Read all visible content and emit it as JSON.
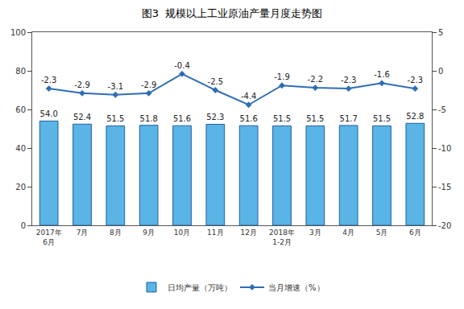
{
  "chart_data": {
    "type": "bar",
    "title": "图3  规模以上工业原油产量月度走势图",
    "categories": [
      "2017年6月",
      "7月",
      "8月",
      "9月",
      "10月",
      "11月",
      "12月",
      "2018年1-2月",
      "3月",
      "4月",
      "5月",
      "6月"
    ],
    "series": [
      {
        "name": "日均产量（万吨）",
        "type": "bar",
        "color": "#5ab4e6",
        "values": [
          54.0,
          52.4,
          51.5,
          51.8,
          51.6,
          52.3,
          51.6,
          51.5,
          51.5,
          51.7,
          51.5,
          52.8
        ],
        "value_labels": [
          "54.0",
          "52.4",
          "51.5",
          "51.8",
          "51.6",
          "52.3",
          "51.6",
          "51.5",
          "51.5",
          "51.7",
          "51.5",
          "52.8"
        ]
      },
      {
        "name": "当月增速（%）",
        "type": "line",
        "color": "#2f6db5",
        "marker": "diamond",
        "axis": "y2",
        "values": [
          -2.3,
          -2.9,
          -3.1,
          -2.9,
          -0.4,
          -2.5,
          -4.4,
          -1.9,
          -2.2,
          -2.3,
          -1.6,
          -2.3
        ]
      }
    ],
    "ylim": [
      0,
      100
    ],
    "yticks": [
      0,
      20,
      40,
      60,
      80,
      100
    ],
    "y2lim": [
      -20,
      5
    ],
    "y2ticks": [
      -20,
      -15,
      -10,
      -5,
      0,
      5
    ],
    "grid": false,
    "legend": "bottom",
    "data_labels": true
  }
}
